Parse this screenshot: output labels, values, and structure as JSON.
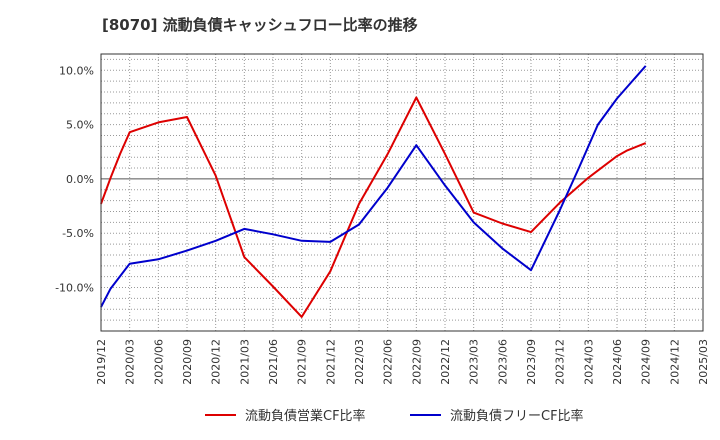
{
  "chart_data": {
    "type": "line",
    "title": "[8070]  流動負債キャッシュフロー比率の推移",
    "xlabel": "",
    "ylabel": "",
    "ylim": [
      -14.0,
      11.5
    ],
    "xlim": [
      "2019/12",
      "2025/03"
    ],
    "x_ticks": [
      "2019/12",
      "2020/03",
      "2020/06",
      "2020/09",
      "2020/12",
      "2021/03",
      "2021/06",
      "2021/09",
      "2021/12",
      "2022/03",
      "2022/06",
      "2022/09",
      "2022/12",
      "2023/03",
      "2023/06",
      "2023/09",
      "2023/12",
      "2024/03",
      "2024/06",
      "2024/09",
      "2024/12",
      "2025/03"
    ],
    "y_ticks": [
      {
        "value": 10,
        "label": "10.0%"
      },
      {
        "value": 5,
        "label": "5.0%"
      },
      {
        "value": 0,
        "label": "0.0%"
      },
      {
        "value": -5,
        "label": "-5.0%"
      },
      {
        "value": -10,
        "label": "-10.0%"
      }
    ],
    "grid": true,
    "legend_position": "bottom",
    "series": [
      {
        "name": "流動負債営業CF比率",
        "color": "#dd0000",
        "points": [
          [
            "2019/12",
            -2.3
          ],
          [
            "2020/01",
            0.1
          ],
          [
            "2020/02",
            2.3
          ],
          [
            "2020/03",
            4.3
          ],
          [
            "2020/06",
            5.2
          ],
          [
            "2020/09",
            5.7
          ],
          [
            "2020/12",
            0.3
          ],
          [
            "2021/03",
            -7.2
          ],
          [
            "2021/06",
            -9.9
          ],
          [
            "2021/09",
            -12.7
          ],
          [
            "2021/12",
            -8.5
          ],
          [
            "2022/03",
            -2.3
          ],
          [
            "2022/06",
            2.3
          ],
          [
            "2022/09",
            7.5
          ],
          [
            "2022/12",
            2.3
          ],
          [
            "2023/03",
            -3.1
          ],
          [
            "2023/06",
            -4.1
          ],
          [
            "2023/09",
            -4.9
          ],
          [
            "2023/12",
            -2.2
          ],
          [
            "2024/03",
            0.1
          ],
          [
            "2024/06",
            2.1
          ],
          [
            "2024/07",
            2.6
          ],
          [
            "2024/09",
            3.3
          ]
        ]
      },
      {
        "name": "流動負債フリーCF比率",
        "color": "#0000cc",
        "points": [
          [
            "2019/12",
            -11.8
          ],
          [
            "2020/01",
            -10.1
          ],
          [
            "2020/03",
            -7.8
          ],
          [
            "2020/06",
            -7.4
          ],
          [
            "2020/09",
            -6.6
          ],
          [
            "2020/12",
            -5.7
          ],
          [
            "2021/03",
            -4.6
          ],
          [
            "2021/06",
            -5.1
          ],
          [
            "2021/09",
            -5.7
          ],
          [
            "2021/12",
            -5.8
          ],
          [
            "2022/03",
            -4.2
          ],
          [
            "2022/06",
            -0.8
          ],
          [
            "2022/09",
            3.1
          ],
          [
            "2022/12",
            -0.6
          ],
          [
            "2023/03",
            -4.0
          ],
          [
            "2023/06",
            -6.4
          ],
          [
            "2023/09",
            -8.4
          ],
          [
            "2023/12",
            -2.9
          ],
          [
            "2024/02",
            1.0
          ],
          [
            "2024/04",
            5.0
          ],
          [
            "2024/06",
            7.4
          ],
          [
            "2024/08",
            9.4
          ],
          [
            "2024/09",
            10.4
          ]
        ]
      }
    ]
  }
}
